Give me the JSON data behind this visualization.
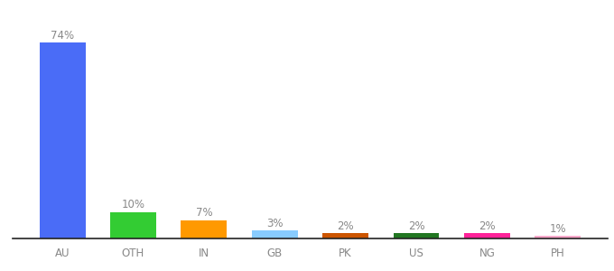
{
  "categories": [
    "AU",
    "OTH",
    "IN",
    "GB",
    "PK",
    "US",
    "NG",
    "PH"
  ],
  "values": [
    74,
    10,
    7,
    3,
    2,
    2,
    2,
    1
  ],
  "labels": [
    "74%",
    "10%",
    "7%",
    "3%",
    "2%",
    "2%",
    "2%",
    "1%"
  ],
  "bar_colors": [
    "#4a6cf7",
    "#33cc33",
    "#ff9900",
    "#88ccff",
    "#cc5500",
    "#227722",
    "#ff2299",
    "#ffaacc"
  ],
  "background_color": "#ffffff",
  "ylim": [
    0,
    82
  ],
  "bar_width": 0.65,
  "label_fontsize": 8.5,
  "tick_fontsize": 8.5,
  "label_color": "#888888",
  "tick_color": "#888888"
}
